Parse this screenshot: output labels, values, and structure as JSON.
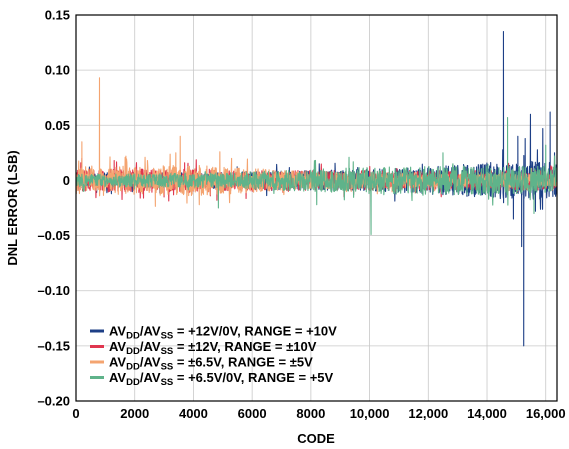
{
  "chart_data": {
    "type": "line",
    "xlabel": "CODE",
    "ylabel": "DNL ERROR (LSB)",
    "xlim": [
      0,
      16384
    ],
    "ylim": [
      -0.2,
      0.15
    ],
    "grid": true,
    "legend_position": "bottom-left",
    "x_ticks": [
      {
        "value": 0,
        "label": "0"
      },
      {
        "value": 2000,
        "label": "2000"
      },
      {
        "value": 4000,
        "label": "4000"
      },
      {
        "value": 6000,
        "label": "6000"
      },
      {
        "value": 8000,
        "label": "8000"
      },
      {
        "value": 10000,
        "label": "10,000"
      },
      {
        "value": 12000,
        "label": "12,000"
      },
      {
        "value": 14000,
        "label": "14,000"
      },
      {
        "value": 16000,
        "label": "16,000"
      }
    ],
    "y_ticks": [
      {
        "value": 0.15,
        "label": "0.15"
      },
      {
        "value": 0.1,
        "label": "0.10"
      },
      {
        "value": 0.05,
        "label": "0.05"
      },
      {
        "value": 0,
        "label": "0"
      },
      {
        "value": -0.05,
        "label": "–0.05"
      },
      {
        "value": -0.1,
        "label": "–0.10"
      },
      {
        "value": -0.15,
        "label": "–0.15"
      },
      {
        "value": -0.2,
        "label": "–0.20"
      }
    ],
    "series": [
      {
        "name": "AVDD/AVSS = +12V/0V, RANGE = +10V",
        "legend": {
          "a": "AV",
          "b": "DD",
          "c": "/AV",
          "d": "SS",
          "e": " = +12V/0V, RANGE = +10V"
        },
        "color": "#1d3f86",
        "base_x": [
          0,
          2000,
          4000,
          6000,
          8000,
          10000,
          12000,
          13000,
          14000,
          15000,
          16384
        ],
        "base_amp": [
          0.007,
          0.007,
          0.007,
          0.008,
          0.009,
          0.01,
          0.012,
          0.014,
          0.016,
          0.018,
          0.016
        ],
        "spikes": [
          [
            14560,
            0.135
          ],
          [
            15250,
            -0.15
          ],
          [
            15180,
            -0.06
          ],
          [
            15300,
            0.038
          ],
          [
            15480,
            0.06
          ],
          [
            15900,
            0.047
          ],
          [
            16150,
            0.062
          ],
          [
            15650,
            -0.028
          ],
          [
            14900,
            -0.035
          ],
          [
            16300,
            0.025
          ],
          [
            15050,
            0.04
          ]
        ]
      },
      {
        "name": "AVDD/AVSS = ±12V, RANGE = ±10V",
        "legend": {
          "a": "AV",
          "b": "DD",
          "c": "/AV",
          "d": "SS",
          "e": " = ±12V, RANGE = ±10V"
        },
        "color": "#e0364f",
        "base_x": [
          0,
          2000,
          4000,
          6000,
          8000,
          10000,
          12000,
          14000,
          16384
        ],
        "base_amp": [
          0.01,
          0.011,
          0.011,
          0.009,
          0.009,
          0.009,
          0.009,
          0.009,
          0.009
        ],
        "spikes": [
          [
            200,
            0.02
          ],
          [
            2300,
            -0.016
          ],
          [
            3000,
            -0.015
          ],
          [
            4800,
            -0.018
          ],
          [
            1300,
            0.018
          ],
          [
            3700,
            0.016
          ]
        ]
      },
      {
        "name": "AVDD/AVSS = ±6.5V, RANGE = ±5V",
        "legend": {
          "a": "AV",
          "b": "DD",
          "c": "/AV",
          "d": "SS",
          "e": " = ±6.5V, RANGE = ±5V"
        },
        "color": "#f4a470",
        "base_x": [
          0,
          2000,
          4000,
          5500,
          7000,
          10000,
          16384
        ],
        "base_amp": [
          0.012,
          0.013,
          0.014,
          0.012,
          0.009,
          0.007,
          0.006
        ],
        "spikes": [
          [
            800,
            0.093
          ],
          [
            3550,
            0.04
          ],
          [
            1700,
            0.022
          ],
          [
            4900,
            0.026
          ],
          [
            2700,
            -0.016
          ],
          [
            4200,
            -0.022
          ],
          [
            5300,
            0.02
          ],
          [
            200,
            0.035
          ],
          [
            3400,
            0.025
          ]
        ]
      },
      {
        "name": "AVDD/AVSS = +6.5V/0V, RANGE = +5V",
        "legend": {
          "a": "AV",
          "b": "DD",
          "c": "/AV",
          "d": "SS",
          "e": " = +6.5V/0V, RANGE = +5V"
        },
        "color": "#5fb38a",
        "base_x": [
          0,
          2000,
          5000,
          7000,
          9000,
          10000,
          12000,
          14000,
          16384
        ],
        "base_amp": [
          0.006,
          0.006,
          0.007,
          0.009,
          0.011,
          0.012,
          0.013,
          0.013,
          0.013
        ],
        "spikes": [
          [
            10050,
            -0.049
          ],
          [
            14700,
            0.057
          ],
          [
            4850,
            -0.025
          ],
          [
            9300,
            0.021
          ],
          [
            12500,
            0.025
          ],
          [
            15600,
            -0.03
          ],
          [
            16000,
            0.032
          ],
          [
            8200,
            -0.022
          ]
        ]
      }
    ]
  }
}
